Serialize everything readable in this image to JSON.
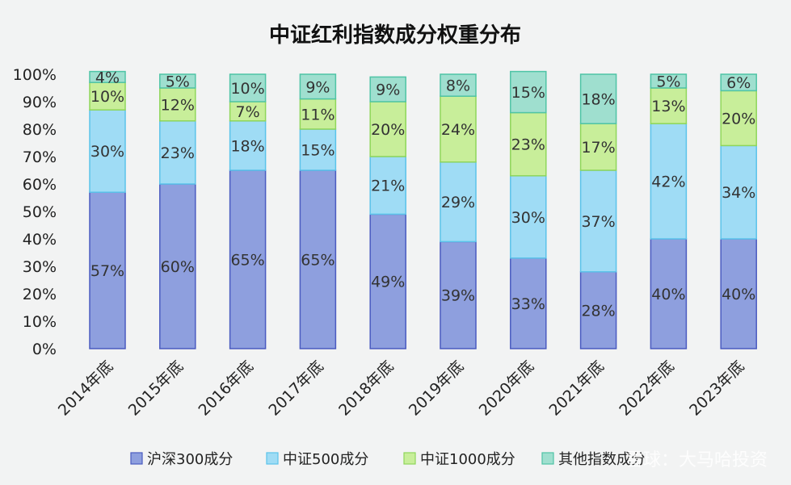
{
  "chart_data": {
    "type": "bar",
    "stacked": true,
    "title": "中证红利指数成分权重分布",
    "categories": [
      "2014年底",
      "2015年底",
      "2016年底",
      "2017年底",
      "2018年底",
      "2019年底",
      "2020年底",
      "2021年底",
      "2022年底",
      "2023年底"
    ],
    "series": [
      {
        "name": "沪深300成分",
        "values": [
          57,
          60,
          65,
          65,
          49,
          39,
          33,
          28,
          40,
          40
        ],
        "labels": [
          "57%",
          "60%",
          "65%",
          "65%",
          "49%",
          "39%",
          "33%",
          "28%",
          "40%",
          "40%"
        ],
        "color": "#8e9fde",
        "stroke": "#4a5bc0"
      },
      {
        "name": "中证500成分",
        "values": [
          30,
          23,
          18,
          15,
          21,
          29,
          30,
          37,
          42,
          34
        ],
        "labels": [
          "30%",
          "23%",
          "18%",
          "15%",
          "21%",
          "29%",
          "30%",
          "37%",
          "42%",
          "34%"
        ],
        "color": "#9fdcf5",
        "stroke": "#5bc3ea"
      },
      {
        "name": "中证1000成分",
        "values": [
          10,
          12,
          7,
          11,
          20,
          24,
          23,
          17,
          13,
          20
        ],
        "labels": [
          "10%",
          "12%",
          "7%",
          "11%",
          "20%",
          "24%",
          "23%",
          "17%",
          "13%",
          "20%"
        ],
        "color": "#c8ee9a",
        "stroke": "#8fd65a"
      },
      {
        "name": "其他指数成分",
        "values": [
          4,
          5,
          10,
          9,
          9,
          8,
          15,
          18,
          5,
          6
        ],
        "labels": [
          "4%",
          "5%",
          "10%",
          "9%",
          "9%",
          "8%",
          "15%",
          "18%",
          "5%",
          "6%"
        ],
        "color": "#9fdfcf",
        "stroke": "#4fc4a6"
      }
    ],
    "ylim": [
      0,
      100
    ],
    "yticks": [
      "0%",
      "10%",
      "20%",
      "30%",
      "40%",
      "50%",
      "60%",
      "70%",
      "80%",
      "90%",
      "100%"
    ],
    "legend_position": "bottom",
    "grid": false
  },
  "watermark": "雪球：大马哈投资"
}
